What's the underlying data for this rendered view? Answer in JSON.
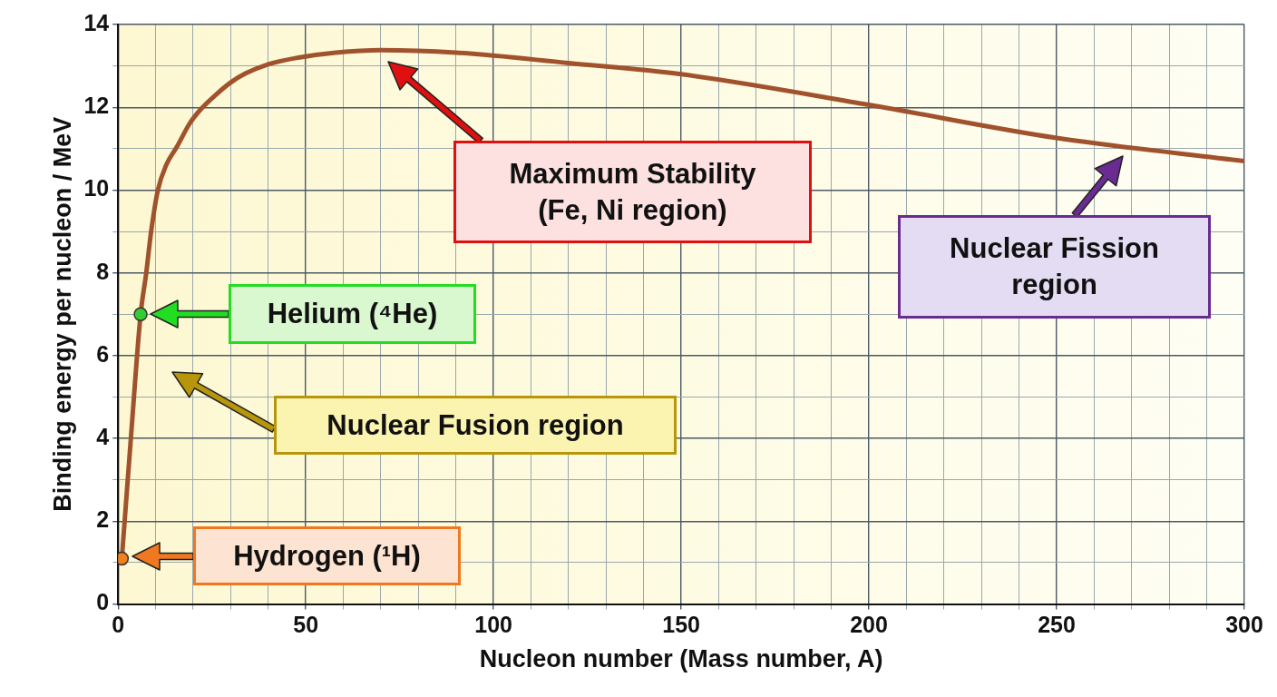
{
  "chart_data": {
    "type": "line",
    "xlabel": "Nucleon number (Mass number, A)",
    "ylabel": "Binding energy per nucleon / MeV",
    "xlim": [
      0,
      300
    ],
    "ylim": [
      0,
      14
    ],
    "xticks": [
      0,
      {
        "value": 10,
        "label": null
      },
      {
        "value": 20,
        "label": null
      },
      {
        "value": 30,
        "label": null
      },
      {
        "value": 40,
        "label": null
      },
      50,
      {
        "value": 60,
        "label": null
      },
      {
        "value": 70,
        "label": null
      },
      {
        "value": 80,
        "label": null
      },
      {
        "value": 90,
        "label": null
      },
      100,
      {
        "value": 110,
        "label": null
      },
      {
        "value": 120,
        "label": null
      },
      {
        "value": 130,
        "label": null
      },
      {
        "value": 140,
        "label": null
      },
      150,
      {
        "value": 160,
        "label": null
      },
      {
        "value": 170,
        "label": null
      },
      {
        "value": 180,
        "label": null
      },
      {
        "value": 190,
        "label": null
      },
      200,
      {
        "value": 210,
        "label": null
      },
      {
        "value": 220,
        "label": null
      },
      {
        "value": 230,
        "label": null
      },
      {
        "value": 240,
        "label": null
      },
      250,
      {
        "value": 260,
        "label": null
      },
      {
        "value": 270,
        "label": null
      },
      {
        "value": 280,
        "label": null
      },
      {
        "value": 290,
        "label": null
      },
      300
    ],
    "yticks": [
      0,
      {
        "value": 1,
        "label": null
      },
      2,
      {
        "value": 3,
        "label": null
      },
      4,
      {
        "value": 5,
        "label": null
      },
      6,
      {
        "value": 7,
        "label": null
      },
      8,
      {
        "value": 9,
        "label": null
      },
      10,
      {
        "value": 11,
        "label": null
      },
      12,
      {
        "value": 13,
        "label": null
      },
      14
    ],
    "grid": true,
    "legend": false,
    "line_style": "solid",
    "series": [
      {
        "color": "#a0522d",
        "marker": "none",
        "x": [
          1,
          3.4,
          6,
          7.5,
          8.8,
          10.6,
          12.8,
          15.7,
          19,
          22,
          26,
          30,
          34,
          40,
          48,
          58,
          70,
          90,
          120,
          150,
          200,
          250,
          300
        ],
        "values": [
          1.1,
          4,
          7,
          8,
          9,
          10,
          10.6,
          11.05,
          11.6,
          11.95,
          12.3,
          12.6,
          12.82,
          13.04,
          13.2,
          13.32,
          13.38,
          13.32,
          13.07,
          12.8,
          12.06,
          11.26,
          10.7
        ]
      },
      {
        "type": "scatter",
        "color": "#f08020",
        "marker": "circle",
        "x": [
          1
        ],
        "values": [
          1.1
        ]
      },
      {
        "type": "scatter",
        "color": "#33cc33",
        "marker": "circle",
        "x": [
          6
        ],
        "values": [
          7
        ]
      }
    ],
    "annotations": [
      "Maximum Stability\n(Fe, Ni region)",
      "Nuclear Fission\nregion",
      "Helium (⁴He)",
      "Nuclear Fusion region",
      "Hydrogen (¹H)"
    ]
  }
}
